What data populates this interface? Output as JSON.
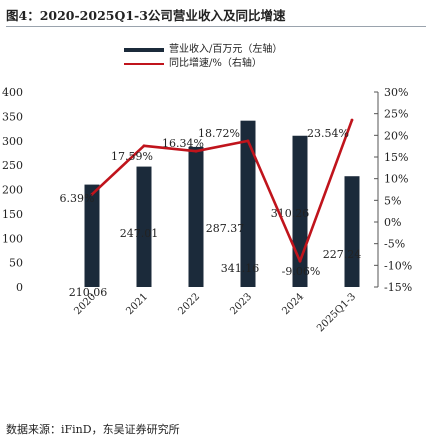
{
  "figure": {
    "title": "图4：2020-2025Q1-3公司营业收入及同比增速",
    "source": "数据来源：iFinD，东吴证券研究所"
  },
  "chart_data": {
    "type": "bar+line",
    "categories": [
      "2020",
      "2021",
      "2022",
      "2023",
      "2024",
      "2025Q1-3"
    ],
    "series": [
      {
        "name": "营业收入/百万元（左轴）",
        "type": "bar",
        "axis": "left",
        "values": [
          210.06,
          247.01,
          287.37,
          341.16,
          310.26,
          227.24
        ],
        "labels": [
          "210.06",
          "247.01",
          "287.37",
          "341.16",
          "310.26",
          "227.24"
        ],
        "color": "#1b2a3a"
      },
      {
        "name": "同比增速/%（右轴）",
        "type": "line",
        "axis": "right",
        "values": [
          6.39,
          17.59,
          16.34,
          18.72,
          -9.06,
          23.54
        ],
        "labels": [
          "6.39%",
          "17.59%",
          "16.34%",
          "18.72%",
          "-9.06%",
          "23.54%"
        ],
        "color": "#c0141c"
      }
    ],
    "left_axis": {
      "ylim": [
        0,
        400
      ],
      "ticks": [
        "0",
        "50",
        "100",
        "150",
        "200",
        "250",
        "300",
        "350",
        "400"
      ]
    },
    "right_axis": {
      "ylim": [
        -15,
        30
      ],
      "ticks": [
        "-15%",
        "-10%",
        "-5%",
        "0%",
        "5%",
        "10%",
        "15%",
        "20%",
        "25%",
        "30%"
      ]
    },
    "legend_position": "top",
    "grid": false
  }
}
